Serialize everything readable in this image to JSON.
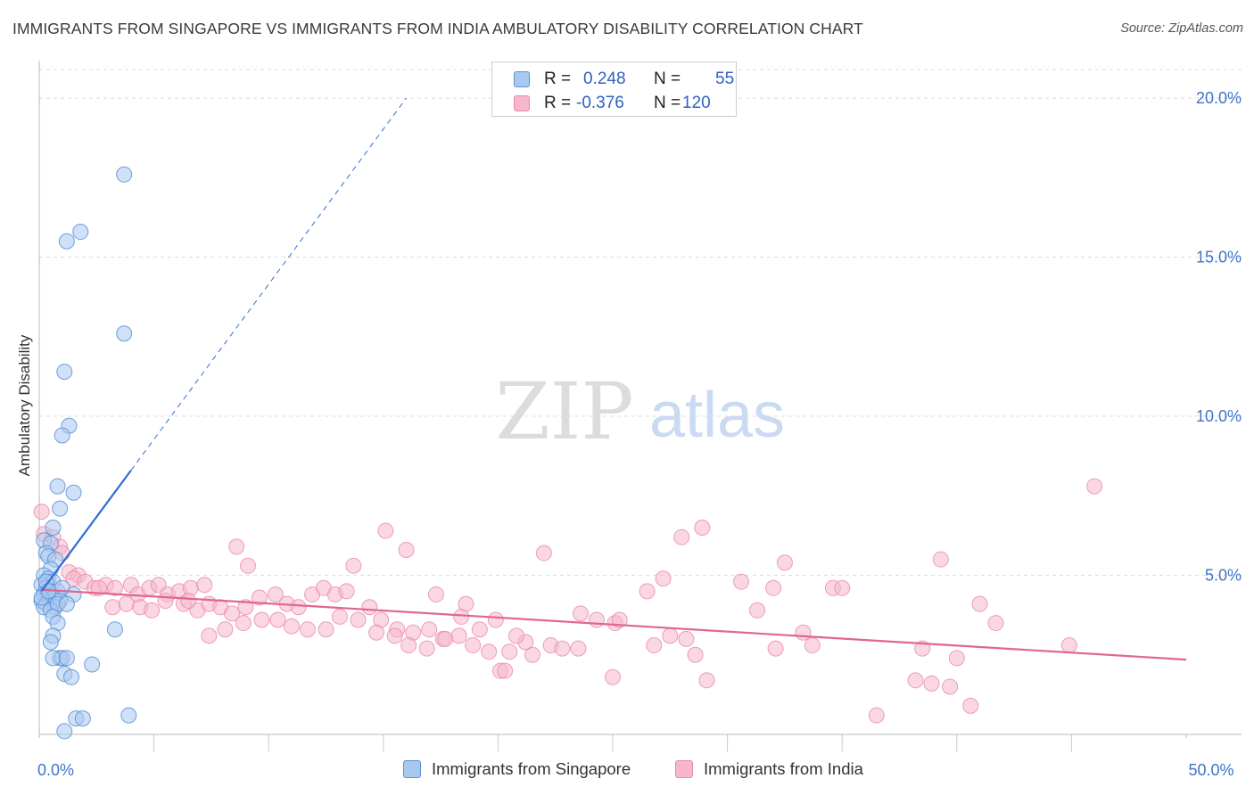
{
  "header": {
    "title": "IMMIGRANTS FROM SINGAPORE VS IMMIGRANTS FROM INDIA AMBULATORY DISABILITY CORRELATION CHART",
    "source": "Source: ZipAtlas.com"
  },
  "legend": {
    "rows": [
      {
        "r_label": "R =",
        "r_value": "0.248",
        "n_label": "N =",
        "n_value": "55"
      },
      {
        "r_label": "R =",
        "r_value": "-0.376",
        "n_label": "N =",
        "n_value": "120"
      }
    ]
  },
  "watermark": {
    "zip": "ZIP",
    "atlas": "atlas"
  },
  "colors": {
    "singapore_fill": "#a9c8f0",
    "singapore_stroke": "#5b8fd6",
    "singapore_line": "#2f6fd0",
    "india_fill": "#f6b6cb",
    "india_stroke": "#e889a9",
    "india_line": "#e06690",
    "axis_text": "#3f74c8",
    "grid": "#dcdcdc"
  },
  "chart_data": {
    "type": "scatter",
    "ylabel": "Ambulatory Disability",
    "xlim": [
      0,
      50
    ],
    "ylim": [
      0,
      20.9
    ],
    "x_ticks": [
      0,
      5,
      10,
      15,
      20,
      25,
      30,
      35,
      40,
      45,
      50
    ],
    "x_tick_labels": {
      "0": "0.0%",
      "50": "50.0%"
    },
    "y_ticks": [
      5,
      10,
      15,
      20
    ],
    "y_tick_labels": [
      "5.0%",
      "10.0%",
      "15.0%",
      "20.0%"
    ],
    "grid": true,
    "series": [
      {
        "name": "Immigrants from Singapore",
        "trend": {
          "x0": 0.1,
          "y0": 4.5,
          "x1": 4.0,
          "y1": 8.3,
          "dash_to_x": 16.0,
          "dash_to_y": 20.0
        },
        "points": [
          [
            3.7,
            17.6
          ],
          [
            1.8,
            15.8
          ],
          [
            1.2,
            15.5
          ],
          [
            3.7,
            12.6
          ],
          [
            1.1,
            11.4
          ],
          [
            1.3,
            9.7
          ],
          [
            1.0,
            9.4
          ],
          [
            0.8,
            7.8
          ],
          [
            1.5,
            7.6
          ],
          [
            0.9,
            7.1
          ],
          [
            0.6,
            6.5
          ],
          [
            0.2,
            6.1
          ],
          [
            0.5,
            6.0
          ],
          [
            0.3,
            5.7
          ],
          [
            0.4,
            5.6
          ],
          [
            0.7,
            5.5
          ],
          [
            0.5,
            5.2
          ],
          [
            0.2,
            5.0
          ],
          [
            0.4,
            4.9
          ],
          [
            0.6,
            4.8
          ],
          [
            0.1,
            4.7
          ],
          [
            0.3,
            4.6
          ],
          [
            0.8,
            4.5
          ],
          [
            1.0,
            4.6
          ],
          [
            1.5,
            4.4
          ],
          [
            0.2,
            4.4
          ],
          [
            0.4,
            4.3
          ],
          [
            0.6,
            4.3
          ],
          [
            0.9,
            4.2
          ],
          [
            0.1,
            4.2
          ],
          [
            0.3,
            4.1
          ],
          [
            0.7,
            4.0
          ],
          [
            0.2,
            4.0
          ],
          [
            0.5,
            3.9
          ],
          [
            0.8,
            4.1
          ],
          [
            0.6,
            3.7
          ],
          [
            0.8,
            3.5
          ],
          [
            3.3,
            3.3
          ],
          [
            0.6,
            3.1
          ],
          [
            0.5,
            2.9
          ],
          [
            0.9,
            2.4
          ],
          [
            1.0,
            2.4
          ],
          [
            0.6,
            2.4
          ],
          [
            1.2,
            2.4
          ],
          [
            2.3,
            2.2
          ],
          [
            1.1,
            1.9
          ],
          [
            1.4,
            1.8
          ],
          [
            3.9,
            0.6
          ],
          [
            1.6,
            0.5
          ],
          [
            1.9,
            0.5
          ],
          [
            1.1,
            0.1
          ],
          [
            0.3,
            4.8
          ],
          [
            0.1,
            4.3
          ],
          [
            0.4,
            4.5
          ],
          [
            1.2,
            4.1
          ]
        ]
      },
      {
        "name": "Immigrants from India",
        "trend": {
          "x0": 0.1,
          "y0": 4.55,
          "x1": 50.0,
          "y1": 2.35
        },
        "points": [
          [
            0.1,
            7.0
          ],
          [
            0.2,
            6.3
          ],
          [
            0.6,
            6.2
          ],
          [
            0.9,
            5.9
          ],
          [
            1.3,
            5.1
          ],
          [
            1.7,
            5.0
          ],
          [
            1.5,
            4.9
          ],
          [
            2.0,
            4.8
          ],
          [
            2.4,
            4.6
          ],
          [
            2.9,
            4.7
          ],
          [
            3.3,
            4.6
          ],
          [
            4.0,
            4.7
          ],
          [
            4.3,
            4.4
          ],
          [
            4.8,
            4.6
          ],
          [
            5.2,
            4.7
          ],
          [
            5.6,
            4.4
          ],
          [
            6.1,
            4.5
          ],
          [
            6.6,
            4.6
          ],
          [
            7.2,
            4.7
          ],
          [
            3.2,
            4.0
          ],
          [
            3.8,
            4.1
          ],
          [
            4.4,
            4.0
          ],
          [
            4.9,
            3.9
          ],
          [
            5.5,
            4.2
          ],
          [
            6.3,
            4.1
          ],
          [
            6.9,
            3.9
          ],
          [
            7.4,
            4.1
          ],
          [
            7.9,
            4.0
          ],
          [
            8.4,
            3.8
          ],
          [
            9.0,
            4.0
          ],
          [
            9.6,
            4.3
          ],
          [
            10.3,
            4.4
          ],
          [
            10.8,
            4.1
          ],
          [
            11.3,
            4.0
          ],
          [
            11.9,
            4.4
          ],
          [
            12.4,
            4.6
          ],
          [
            12.9,
            4.4
          ],
          [
            13.1,
            3.7
          ],
          [
            12.5,
            3.3
          ],
          [
            11.7,
            3.3
          ],
          [
            11.0,
            3.4
          ],
          [
            10.4,
            3.6
          ],
          [
            9.7,
            3.6
          ],
          [
            8.9,
            3.5
          ],
          [
            8.1,
            3.3
          ],
          [
            7.4,
            3.1
          ],
          [
            9.1,
            5.3
          ],
          [
            8.6,
            5.9
          ],
          [
            13.7,
            5.3
          ],
          [
            14.4,
            4.0
          ],
          [
            14.9,
            3.6
          ],
          [
            15.6,
            3.3
          ],
          [
            16.3,
            3.2
          ],
          [
            17.0,
            3.3
          ],
          [
            17.6,
            3.0
          ],
          [
            18.3,
            3.1
          ],
          [
            18.9,
            2.8
          ],
          [
            19.6,
            2.6
          ],
          [
            20.1,
            2.0
          ],
          [
            20.5,
            2.6
          ],
          [
            21.2,
            2.9
          ],
          [
            21.5,
            2.5
          ],
          [
            20.8,
            3.1
          ],
          [
            19.9,
            3.6
          ],
          [
            19.2,
            3.3
          ],
          [
            18.4,
            3.7
          ],
          [
            17.7,
            3.0
          ],
          [
            16.9,
            2.7
          ],
          [
            16.1,
            2.8
          ],
          [
            15.5,
            3.1
          ],
          [
            14.7,
            3.2
          ],
          [
            13.9,
            3.6
          ],
          [
            13.4,
            4.5
          ],
          [
            15.1,
            6.4
          ],
          [
            16.0,
            5.8
          ],
          [
            17.3,
            4.4
          ],
          [
            18.6,
            4.1
          ],
          [
            20.3,
            2.0
          ],
          [
            22.3,
            2.8
          ],
          [
            22.8,
            2.7
          ],
          [
            23.5,
            2.7
          ],
          [
            22.0,
            5.7
          ],
          [
            23.6,
            3.8
          ],
          [
            24.3,
            3.6
          ],
          [
            25.1,
            3.5
          ],
          [
            26.8,
            2.8
          ],
          [
            27.5,
            3.1
          ],
          [
            28.2,
            3.0
          ],
          [
            28.6,
            2.5
          ],
          [
            28.0,
            6.2
          ],
          [
            28.9,
            6.5
          ],
          [
            29.1,
            1.7
          ],
          [
            27.2,
            4.9
          ],
          [
            26.5,
            4.5
          ],
          [
            25.3,
            3.6
          ],
          [
            25.0,
            1.8
          ],
          [
            30.6,
            4.8
          ],
          [
            31.3,
            3.9
          ],
          [
            32.1,
            2.7
          ],
          [
            32.5,
            5.4
          ],
          [
            33.3,
            3.2
          ],
          [
            33.7,
            2.8
          ],
          [
            34.6,
            4.6
          ],
          [
            32.0,
            4.6
          ],
          [
            40.0,
            2.4
          ],
          [
            39.3,
            5.5
          ],
          [
            39.7,
            1.5
          ],
          [
            38.2,
            1.7
          ],
          [
            38.5,
            2.7
          ],
          [
            41.0,
            4.1
          ],
          [
            41.7,
            3.5
          ],
          [
            40.6,
            0.9
          ],
          [
            44.9,
            2.8
          ],
          [
            46.0,
            7.8
          ],
          [
            36.5,
            0.6
          ],
          [
            1.0,
            5.7
          ],
          [
            2.6,
            4.6
          ],
          [
            6.5,
            4.2
          ],
          [
            38.9,
            1.6
          ],
          [
            35.0,
            4.6
          ]
        ]
      }
    ]
  }
}
